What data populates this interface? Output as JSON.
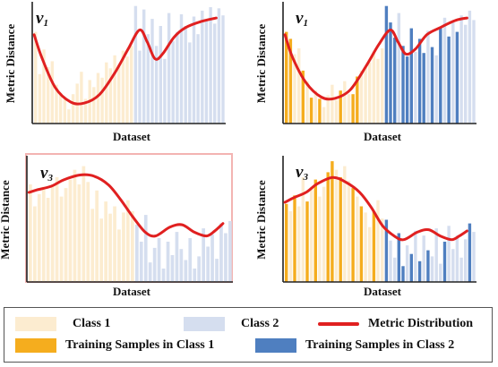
{
  "colors": {
    "class1": "#fcecd0",
    "class2": "#d5deef",
    "training1": "#f5ad1e",
    "training2": "#4f7fc0",
    "metric": "#e02020",
    "highlight_frame": "#f3b4b2"
  },
  "legend": {
    "class1": "Class 1",
    "class2": "Class 2",
    "metric": "Metric Distribution",
    "training1": "Training Samples in Class 1",
    "training2": "Training Samples in Class 2"
  },
  "chart_data": [
    {
      "type": "bar",
      "panel": "top-left",
      "label": "v",
      "label_sub": "1",
      "xlabel": "Dataset",
      "ylabel": "Metric Distance",
      "ylim": [
        0,
        1
      ],
      "highlighted": false,
      "bars": [
        {
          "v": 0.78,
          "c": 1
        },
        {
          "v": 0.42,
          "c": 1
        },
        {
          "v": 0.63,
          "c": 1
        },
        {
          "v": 0.48,
          "c": 1
        },
        {
          "v": 0.53,
          "c": 1
        },
        {
          "v": 0.33,
          "c": 1
        },
        {
          "v": 0.26,
          "c": 1
        },
        {
          "v": 0.22,
          "c": 1
        },
        {
          "v": 0.12,
          "c": 1
        },
        {
          "v": 0.25,
          "c": 1
        },
        {
          "v": 0.34,
          "c": 1
        },
        {
          "v": 0.44,
          "c": 1
        },
        {
          "v": 0.21,
          "c": 1
        },
        {
          "v": 0.37,
          "c": 1
        },
        {
          "v": 0.31,
          "c": 1
        },
        {
          "v": 0.43,
          "c": 1
        },
        {
          "v": 0.39,
          "c": 1
        },
        {
          "v": 0.52,
          "c": 1
        },
        {
          "v": 0.47,
          "c": 1
        },
        {
          "v": 0.58,
          "c": 1
        },
        {
          "v": 0.5,
          "c": 1
        },
        {
          "v": 0.62,
          "c": 1
        },
        {
          "v": 0.57,
          "c": 1
        },
        {
          "v": 0.66,
          "c": 1
        },
        {
          "v": 1.0,
          "c": 2
        },
        {
          "v": 0.62,
          "c": 2
        },
        {
          "v": 0.97,
          "c": 2
        },
        {
          "v": 0.76,
          "c": 2
        },
        {
          "v": 0.89,
          "c": 2
        },
        {
          "v": 0.66,
          "c": 2
        },
        {
          "v": 0.83,
          "c": 2
        },
        {
          "v": 0.55,
          "c": 2
        },
        {
          "v": 0.94,
          "c": 2
        },
        {
          "v": 0.7,
          "c": 2
        },
        {
          "v": 0.78,
          "c": 2
        },
        {
          "v": 0.93,
          "c": 2
        },
        {
          "v": 0.83,
          "c": 2
        },
        {
          "v": 0.69,
          "c": 2
        },
        {
          "v": 0.91,
          "c": 2
        },
        {
          "v": 0.76,
          "c": 2
        },
        {
          "v": 0.96,
          "c": 2
        },
        {
          "v": 0.88,
          "c": 2
        },
        {
          "v": 0.99,
          "c": 2
        },
        {
          "v": 0.85,
          "c": 2
        },
        {
          "v": 0.98,
          "c": 2
        },
        {
          "v": 0.92,
          "c": 2
        }
      ],
      "curve": [
        [
          0.01,
          0.74
        ],
        [
          0.05,
          0.55
        ],
        [
          0.12,
          0.3
        ],
        [
          0.2,
          0.18
        ],
        [
          0.27,
          0.17
        ],
        [
          0.35,
          0.24
        ],
        [
          0.43,
          0.42
        ],
        [
          0.5,
          0.62
        ],
        [
          0.56,
          0.78
        ],
        [
          0.6,
          0.68
        ],
        [
          0.64,
          0.54
        ],
        [
          0.68,
          0.58
        ],
        [
          0.74,
          0.72
        ],
        [
          0.8,
          0.8
        ],
        [
          0.88,
          0.85
        ],
        [
          0.96,
          0.88
        ]
      ]
    },
    {
      "type": "bar",
      "panel": "top-right",
      "label": "v",
      "label_sub": "1",
      "xlabel": "Dataset",
      "ylabel": "Metric Distance",
      "ylim": [
        0,
        1
      ],
      "highlighted": false,
      "bars": [
        {
          "v": 0.78,
          "c": 1,
          "t": 1
        },
        {
          "v": 0.72,
          "c": 1,
          "t": 1
        },
        {
          "v": 0.59,
          "c": 1
        },
        {
          "v": 0.64,
          "c": 1
        },
        {
          "v": 0.45,
          "c": 1,
          "t": 1
        },
        {
          "v": 0.36,
          "c": 1
        },
        {
          "v": 0.22,
          "c": 1,
          "t": 1
        },
        {
          "v": 0.28,
          "c": 1
        },
        {
          "v": 0.21,
          "c": 1,
          "t": 1
        },
        {
          "v": 0.14,
          "c": 1
        },
        {
          "v": 0.24,
          "c": 1
        },
        {
          "v": 0.33,
          "c": 1
        },
        {
          "v": 0.2,
          "c": 1
        },
        {
          "v": 0.28,
          "c": 1,
          "t": 1
        },
        {
          "v": 0.36,
          "c": 1
        },
        {
          "v": 0.25,
          "c": 1
        },
        {
          "v": 0.25,
          "c": 1,
          "t": 1
        },
        {
          "v": 0.4,
          "c": 1,
          "t": 1
        },
        {
          "v": 0.45,
          "c": 1
        },
        {
          "v": 0.48,
          "c": 1
        },
        {
          "v": 0.52,
          "c": 1
        },
        {
          "v": 0.61,
          "c": 1
        },
        {
          "v": 0.55,
          "c": 1
        },
        {
          "v": 0.64,
          "c": 1
        },
        {
          "v": 1.0,
          "c": 2,
          "t": 1
        },
        {
          "v": 0.86,
          "c": 2,
          "t": 1
        },
        {
          "v": 0.73,
          "c": 2,
          "t": 1
        },
        {
          "v": 0.94,
          "c": 2
        },
        {
          "v": 0.66,
          "c": 2,
          "t": 1
        },
        {
          "v": 0.57,
          "c": 2,
          "t": 1
        },
        {
          "v": 0.81,
          "c": 2,
          "t": 1
        },
        {
          "v": 0.61,
          "c": 2
        },
        {
          "v": 0.72,
          "c": 2,
          "t": 1
        },
        {
          "v": 0.6,
          "c": 2,
          "t": 1
        },
        {
          "v": 0.79,
          "c": 2
        },
        {
          "v": 0.65,
          "c": 2,
          "t": 1
        },
        {
          "v": 0.58,
          "c": 2
        },
        {
          "v": 0.82,
          "c": 2,
          "t": 1
        },
        {
          "v": 0.9,
          "c": 2
        },
        {
          "v": 0.74,
          "c": 2,
          "t": 1
        },
        {
          "v": 0.86,
          "c": 2
        },
        {
          "v": 0.78,
          "c": 2,
          "t": 1
        },
        {
          "v": 0.92,
          "c": 2
        },
        {
          "v": 0.84,
          "c": 2
        },
        {
          "v": 0.96,
          "c": 2
        },
        {
          "v": 0.88,
          "c": 2
        }
      ],
      "curve": [
        [
          0.01,
          0.74
        ],
        [
          0.05,
          0.55
        ],
        [
          0.12,
          0.34
        ],
        [
          0.2,
          0.22
        ],
        [
          0.27,
          0.21
        ],
        [
          0.35,
          0.28
        ],
        [
          0.43,
          0.47
        ],
        [
          0.5,
          0.66
        ],
        [
          0.56,
          0.78
        ],
        [
          0.6,
          0.68
        ],
        [
          0.64,
          0.58
        ],
        [
          0.69,
          0.62
        ],
        [
          0.75,
          0.74
        ],
        [
          0.82,
          0.8
        ],
        [
          0.9,
          0.86
        ],
        [
          0.96,
          0.88
        ]
      ]
    },
    {
      "type": "bar",
      "panel": "bottom-left",
      "label": "v",
      "label_sub": "3",
      "xlabel": "Dataset",
      "ylabel": "Metric Distance",
      "ylim": [
        0,
        1
      ],
      "highlighted": true,
      "bars": [
        {
          "v": 0.8,
          "c": 1
        },
        {
          "v": 0.62,
          "c": 1
        },
        {
          "v": 0.72,
          "c": 1
        },
        {
          "v": 0.78,
          "c": 1
        },
        {
          "v": 0.69,
          "c": 1
        },
        {
          "v": 0.8,
          "c": 1
        },
        {
          "v": 0.86,
          "c": 1
        },
        {
          "v": 0.7,
          "c": 1
        },
        {
          "v": 0.77,
          "c": 1
        },
        {
          "v": 0.84,
          "c": 1
        },
        {
          "v": 0.92,
          "c": 1
        },
        {
          "v": 0.8,
          "c": 1
        },
        {
          "v": 0.95,
          "c": 1
        },
        {
          "v": 0.82,
          "c": 1
        },
        {
          "v": 0.6,
          "c": 1
        },
        {
          "v": 0.75,
          "c": 1
        },
        {
          "v": 0.52,
          "c": 1
        },
        {
          "v": 0.66,
          "c": 1
        },
        {
          "v": 0.56,
          "c": 1
        },
        {
          "v": 0.62,
          "c": 1
        },
        {
          "v": 0.43,
          "c": 1
        },
        {
          "v": 0.57,
          "c": 1
        },
        {
          "v": 0.67,
          "c": 1
        },
        {
          "v": 0.58,
          "c": 1
        },
        {
          "v": 0.47,
          "c": 2
        },
        {
          "v": 0.33,
          "c": 2
        },
        {
          "v": 0.55,
          "c": 2
        },
        {
          "v": 0.16,
          "c": 2
        },
        {
          "v": 0.28,
          "c": 2
        },
        {
          "v": 0.36,
          "c": 2
        },
        {
          "v": 0.11,
          "c": 2
        },
        {
          "v": 0.33,
          "c": 2
        },
        {
          "v": 0.22,
          "c": 2
        },
        {
          "v": 0.41,
          "c": 2
        },
        {
          "v": 0.27,
          "c": 2
        },
        {
          "v": 0.18,
          "c": 2
        },
        {
          "v": 0.36,
          "c": 2
        },
        {
          "v": 0.11,
          "c": 2
        },
        {
          "v": 0.21,
          "c": 2
        },
        {
          "v": 0.44,
          "c": 2
        },
        {
          "v": 0.29,
          "c": 2
        },
        {
          "v": 0.39,
          "c": 2
        },
        {
          "v": 0.19,
          "c": 2
        },
        {
          "v": 0.48,
          "c": 2
        },
        {
          "v": 0.4,
          "c": 2
        },
        {
          "v": 0.5,
          "c": 2
        }
      ],
      "curve": [
        [
          0.01,
          0.72
        ],
        [
          0.05,
          0.74
        ],
        [
          0.12,
          0.77
        ],
        [
          0.18,
          0.82
        ],
        [
          0.26,
          0.86
        ],
        [
          0.33,
          0.85
        ],
        [
          0.4,
          0.78
        ],
        [
          0.46,
          0.66
        ],
        [
          0.52,
          0.52
        ],
        [
          0.58,
          0.4
        ],
        [
          0.63,
          0.37
        ],
        [
          0.7,
          0.44
        ],
        [
          0.76,
          0.46
        ],
        [
          0.82,
          0.4
        ],
        [
          0.88,
          0.37
        ],
        [
          0.92,
          0.41
        ],
        [
          0.96,
          0.47
        ]
      ]
    },
    {
      "type": "bar",
      "panel": "bottom-right",
      "label": "v",
      "label_sub": "3",
      "xlabel": "Dataset",
      "ylabel": "Metric Distance",
      "ylim": [
        0,
        1
      ],
      "highlighted": false,
      "bars": [
        {
          "v": 0.64,
          "c": 1,
          "t": 1
        },
        {
          "v": 0.58,
          "c": 1
        },
        {
          "v": 0.71,
          "c": 1,
          "t": 1
        },
        {
          "v": 0.62,
          "c": 1
        },
        {
          "v": 0.86,
          "c": 1
        },
        {
          "v": 0.66,
          "c": 1,
          "t": 1
        },
        {
          "v": 0.78,
          "c": 1
        },
        {
          "v": 0.84,
          "c": 1,
          "t": 1
        },
        {
          "v": 0.7,
          "c": 1
        },
        {
          "v": 0.78,
          "c": 1
        },
        {
          "v": 0.9,
          "c": 1,
          "t": 1
        },
        {
          "v": 0.99,
          "c": 1,
          "t": 1
        },
        {
          "v": 0.92,
          "c": 1
        },
        {
          "v": 0.86,
          "c": 1,
          "t": 1
        },
        {
          "v": 0.95,
          "c": 1
        },
        {
          "v": 0.83,
          "c": 1
        },
        {
          "v": 0.77,
          "c": 1,
          "t": 1
        },
        {
          "v": 0.7,
          "c": 1
        },
        {
          "v": 0.62,
          "c": 1,
          "t": 1
        },
        {
          "v": 0.57,
          "c": 1
        },
        {
          "v": 0.45,
          "c": 1
        },
        {
          "v": 0.58,
          "c": 1,
          "t": 1
        },
        {
          "v": 0.67,
          "c": 1
        },
        {
          "v": 0.52,
          "c": 1
        },
        {
          "v": 0.51,
          "c": 2,
          "t": 1
        },
        {
          "v": 0.34,
          "c": 2
        },
        {
          "v": 0.2,
          "c": 2
        },
        {
          "v": 0.4,
          "c": 2,
          "t": 1
        },
        {
          "v": 0.13,
          "c": 2,
          "t": 1
        },
        {
          "v": 0.3,
          "c": 2
        },
        {
          "v": 0.23,
          "c": 2,
          "t": 1
        },
        {
          "v": 0.42,
          "c": 2
        },
        {
          "v": 0.17,
          "c": 2,
          "t": 1
        },
        {
          "v": 0.38,
          "c": 2
        },
        {
          "v": 0.26,
          "c": 2,
          "t": 1
        },
        {
          "v": 0.21,
          "c": 2
        },
        {
          "v": 0.44,
          "c": 2
        },
        {
          "v": 0.15,
          "c": 2
        },
        {
          "v": 0.33,
          "c": 2,
          "t": 1
        },
        {
          "v": 0.46,
          "c": 2
        },
        {
          "v": 0.27,
          "c": 2
        },
        {
          "v": 0.38,
          "c": 2
        },
        {
          "v": 0.2,
          "c": 2
        },
        {
          "v": 0.35,
          "c": 2
        },
        {
          "v": 0.48,
          "c": 2,
          "t": 1
        },
        {
          "v": 0.41,
          "c": 2
        }
      ],
      "curve": [
        [
          0.01,
          0.64
        ],
        [
          0.06,
          0.68
        ],
        [
          0.12,
          0.72
        ],
        [
          0.18,
          0.79
        ],
        [
          0.26,
          0.84
        ],
        [
          0.33,
          0.8
        ],
        [
          0.4,
          0.72
        ],
        [
          0.46,
          0.6
        ],
        [
          0.52,
          0.45
        ],
        [
          0.58,
          0.37
        ],
        [
          0.63,
          0.34
        ],
        [
          0.7,
          0.4
        ],
        [
          0.76,
          0.42
        ],
        [
          0.82,
          0.37
        ],
        [
          0.88,
          0.34
        ],
        [
          0.92,
          0.37
        ],
        [
          0.96,
          0.41
        ]
      ]
    }
  ]
}
